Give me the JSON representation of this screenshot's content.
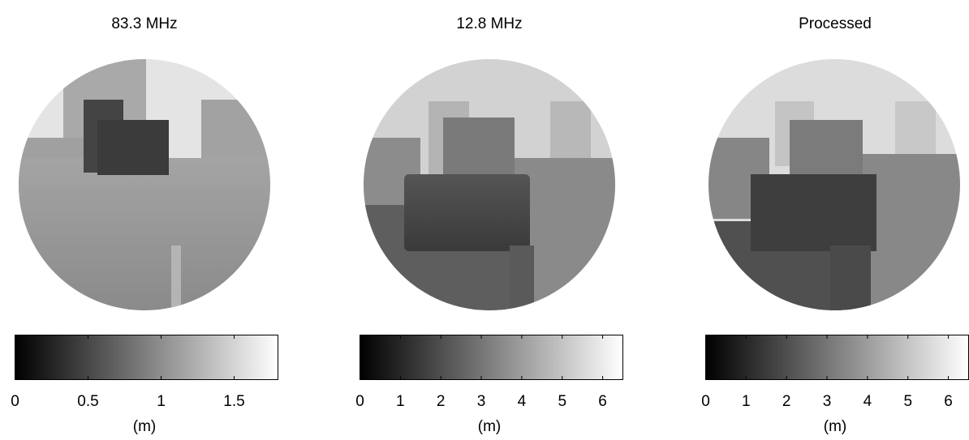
{
  "chart_data": [
    {
      "type": "image",
      "title": "83.3 MHz",
      "colorbar_label": "(m)",
      "xlim": [
        0,
        1.8
      ],
      "xticks": [
        0,
        0.5,
        1,
        1.5
      ]
    },
    {
      "type": "image",
      "title": "12.8 MHz",
      "colorbar_label": "(m)",
      "xlim": [
        0,
        6.5
      ],
      "xticks": [
        0,
        1,
        2,
        3,
        4,
        5,
        6
      ]
    },
    {
      "type": "image",
      "title": "Processed",
      "colorbar_label": "(m)",
      "xlim": [
        0,
        6.5
      ],
      "xticks": [
        0,
        1,
        2,
        3,
        4,
        5,
        6
      ]
    }
  ]
}
